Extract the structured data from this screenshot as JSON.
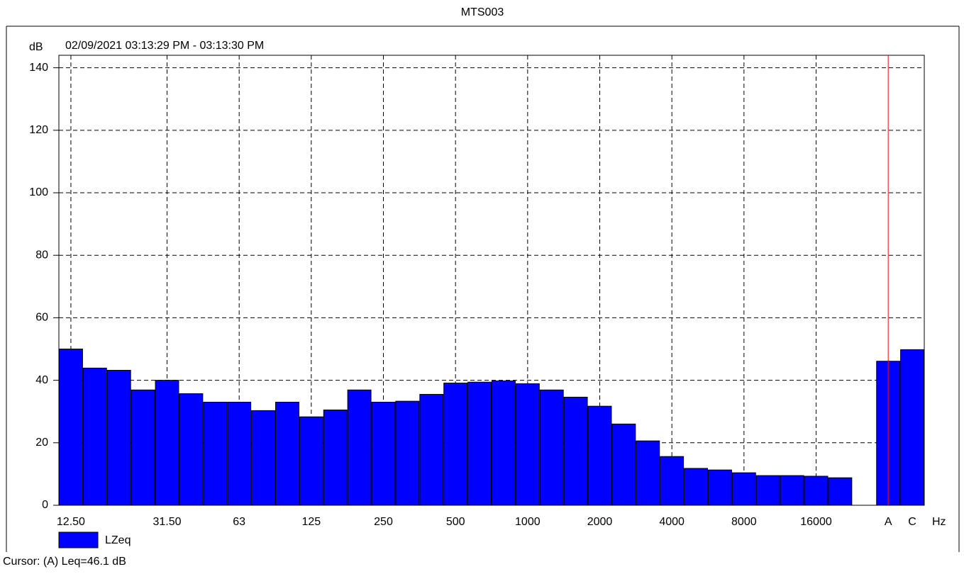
{
  "chart_data": {
    "type": "bar",
    "title": "MTS003",
    "subtitle": "02/09/2021 03:13:29 PM - 03:13:30 PM",
    "y_label": "dB",
    "x_label": "Hz",
    "categories": [
      "12.50",
      null,
      null,
      null,
      "31.50",
      null,
      null,
      "63",
      null,
      null,
      "125",
      null,
      null,
      "250",
      null,
      null,
      "500",
      null,
      null,
      "1000",
      null,
      null,
      "2000",
      null,
      null,
      "4000",
      null,
      null,
      "8000",
      null,
      null,
      "16000",
      null,
      null,
      "A",
      "C"
    ],
    "series": [
      {
        "name": "LZeq",
        "color": "#0000ff",
        "values": [
          50.0,
          43.9,
          43.2,
          36.9,
          40.0,
          35.7,
          33.0,
          33.0,
          30.3,
          33.0,
          28.3,
          30.5,
          36.9,
          33.0,
          33.3,
          35.5,
          39.1,
          39.4,
          39.8,
          38.9,
          36.9,
          34.6,
          31.7,
          26.0,
          20.6,
          15.6,
          11.8,
          11.3,
          10.4,
          9.5,
          9.5,
          9.3,
          8.8,
          0,
          46.1,
          49.8
        ]
      }
    ],
    "ylim": [
      0,
      144
    ],
    "yticks": [
      0,
      20,
      40,
      60,
      80,
      100,
      120,
      140
    ],
    "grid": true,
    "cursor_index": 34,
    "cursor_color": "#ff0000",
    "cursor_text": "Cursor: (A)  Leq=46.1 dB"
  }
}
